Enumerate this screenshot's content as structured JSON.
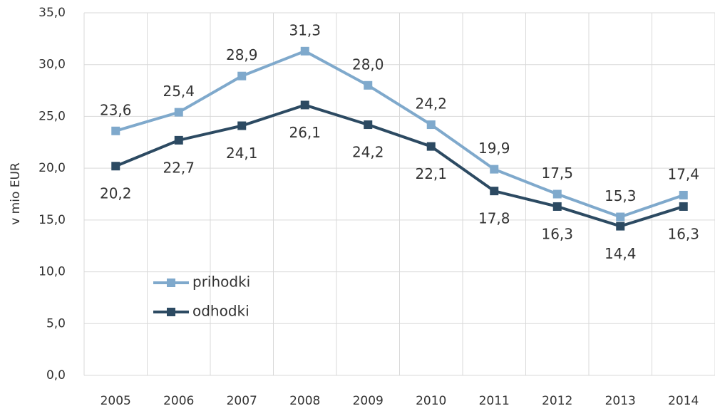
{
  "chart_data": {
    "type": "line",
    "y_label": "v mio EUR",
    "categories": [
      "2005",
      "2006",
      "2007",
      "2008",
      "2009",
      "2010",
      "2011",
      "2012",
      "2013",
      "2014"
    ],
    "series": [
      {
        "name": "prihodki",
        "color": "#7fa9cc",
        "values": [
          23.6,
          25.4,
          28.9,
          31.3,
          28.0,
          24.2,
          19.9,
          17.5,
          15.3,
          17.4
        ],
        "value_labels": [
          "23,6",
          "25,4",
          "28,9",
          "31,3",
          "28,0",
          "24,2",
          "19,9",
          "17,5",
          "15,3",
          "17,4"
        ]
      },
      {
        "name": "odhodki",
        "color": "#2c4a62",
        "values": [
          20.2,
          22.7,
          24.1,
          26.1,
          24.2,
          22.1,
          17.8,
          16.3,
          14.4,
          16.3
        ],
        "value_labels": [
          "20,2",
          "22,7",
          "24,1",
          "26,1",
          "24,2",
          "22,1",
          "17,8",
          "16,3",
          "14,4",
          "16,3"
        ]
      }
    ],
    "ylim": [
      0,
      35
    ],
    "yticks": [
      {
        "value": 0,
        "label": "0,0"
      },
      {
        "value": 5,
        "label": "5,0"
      },
      {
        "value": 10,
        "label": "10,0"
      },
      {
        "value": 15,
        "label": "15,0"
      },
      {
        "value": 20,
        "label": "20,0"
      },
      {
        "value": 25,
        "label": "25,0"
      },
      {
        "value": 30,
        "label": "30,0"
      },
      {
        "value": 35,
        "label": "35,0"
      }
    ],
    "grid": true
  }
}
